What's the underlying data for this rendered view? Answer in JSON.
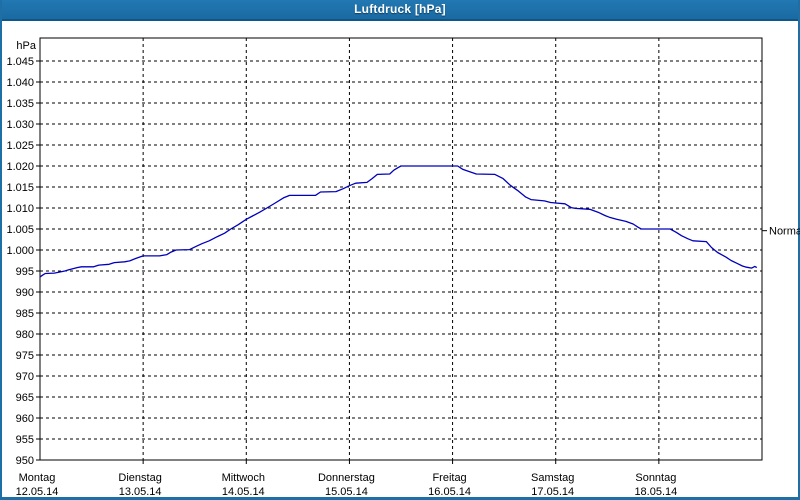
{
  "window": {
    "title": "Luftdruck [hPa]",
    "titlebar_color": "#1c6da7"
  },
  "chart_data": {
    "type": "line",
    "title": "Luftdruck [hPa]",
    "ylabel": "hPa",
    "unit": "hPa",
    "ylim": [
      950,
      1045
    ],
    "grid": true,
    "line_color": "#0000bb",
    "y_ticks": [
      {
        "value": 1045,
        "label": "1.045"
      },
      {
        "value": 1040,
        "label": "1.040"
      },
      {
        "value": 1035,
        "label": "1.035"
      },
      {
        "value": 1030,
        "label": "1.030"
      },
      {
        "value": 1025,
        "label": "1.025"
      },
      {
        "value": 1020,
        "label": "1.020"
      },
      {
        "value": 1015,
        "label": "1.015"
      },
      {
        "value": 1010,
        "label": "1.010"
      },
      {
        "value": 1005,
        "label": "1.005"
      },
      {
        "value": 1000,
        "label": "1.000"
      },
      {
        "value": 995,
        "label": "995"
      },
      {
        "value": 990,
        "label": "990"
      },
      {
        "value": 985,
        "label": "985"
      },
      {
        "value": 980,
        "label": "980"
      },
      {
        "value": 975,
        "label": "975"
      },
      {
        "value": 970,
        "label": "970"
      },
      {
        "value": 965,
        "label": "965"
      },
      {
        "value": 960,
        "label": "960"
      },
      {
        "value": 955,
        "label": "955"
      },
      {
        "value": 950,
        "label": "950"
      }
    ],
    "days": [
      {
        "name": "Montag",
        "date": "12.05.14"
      },
      {
        "name": "Dienstag",
        "date": "13.05.14"
      },
      {
        "name": "Mittwoch",
        "date": "14.05.14"
      },
      {
        "name": "Donnerstag",
        "date": "15.05.14"
      },
      {
        "name": "Freitag",
        "date": "16.05.14"
      },
      {
        "name": "Samstag",
        "date": "17.05.14"
      },
      {
        "name": "Sonntag",
        "date": "18.05.14"
      }
    ],
    "normal_marker": {
      "label": "Normal",
      "value": 1004.6
    },
    "series": [
      {
        "name": "Luftdruck",
        "x_unit": "days_from_12.05.14",
        "points": [
          [
            0.0,
            993.6
          ],
          [
            0.03,
            994.1
          ],
          [
            0.05,
            994.4
          ],
          [
            0.14,
            994.5
          ],
          [
            0.24,
            995.0
          ],
          [
            0.28,
            995.3
          ],
          [
            0.36,
            995.8
          ],
          [
            0.4,
            996.0
          ],
          [
            0.52,
            996.0
          ],
          [
            0.57,
            996.4
          ],
          [
            0.67,
            996.6
          ],
          [
            0.72,
            997.0
          ],
          [
            0.82,
            997.2
          ],
          [
            0.87,
            997.4
          ],
          [
            0.93,
            998.0
          ],
          [
            1.0,
            998.6
          ],
          [
            1.16,
            998.6
          ],
          [
            1.23,
            998.9
          ],
          [
            1.27,
            999.5
          ],
          [
            1.32,
            1000.0
          ],
          [
            1.45,
            1000.1
          ],
          [
            1.51,
            1000.8
          ],
          [
            1.57,
            1001.5
          ],
          [
            1.64,
            1002.2
          ],
          [
            1.72,
            1003.2
          ],
          [
            1.79,
            1004.0
          ],
          [
            1.85,
            1005.0
          ],
          [
            1.92,
            1006.0
          ],
          [
            2.0,
            1007.3
          ],
          [
            2.06,
            1008.1
          ],
          [
            2.13,
            1009.0
          ],
          [
            2.2,
            1010.0
          ],
          [
            2.28,
            1011.2
          ],
          [
            2.36,
            1012.4
          ],
          [
            2.42,
            1013.0
          ],
          [
            2.67,
            1013.0
          ],
          [
            2.72,
            1013.8
          ],
          [
            2.87,
            1013.9
          ],
          [
            2.94,
            1014.6
          ],
          [
            3.0,
            1015.3
          ],
          [
            3.06,
            1015.9
          ],
          [
            3.17,
            1016.1
          ],
          [
            3.22,
            1017.0
          ],
          [
            3.27,
            1018.0
          ],
          [
            3.39,
            1018.1
          ],
          [
            3.43,
            1019.0
          ],
          [
            3.47,
            1019.6
          ],
          [
            3.5,
            1020.0
          ],
          [
            4.05,
            1020.0
          ],
          [
            4.1,
            1019.2
          ],
          [
            4.17,
            1018.6
          ],
          [
            4.23,
            1018.1
          ],
          [
            4.41,
            1018.0
          ],
          [
            4.49,
            1017.0
          ],
          [
            4.56,
            1015.4
          ],
          [
            4.64,
            1014.0
          ],
          [
            4.71,
            1012.6
          ],
          [
            4.76,
            1012.0
          ],
          [
            4.89,
            1011.7
          ],
          [
            4.95,
            1011.3
          ],
          [
            5.0,
            1011.2
          ],
          [
            5.09,
            1011.0
          ],
          [
            5.15,
            1010.1
          ],
          [
            5.19,
            1009.9
          ],
          [
            5.33,
            1009.7
          ],
          [
            5.41,
            1009.0
          ],
          [
            5.48,
            1008.2
          ],
          [
            5.52,
            1007.8
          ],
          [
            5.59,
            1007.3
          ],
          [
            5.68,
            1006.8
          ],
          [
            5.75,
            1006.2
          ],
          [
            5.8,
            1005.4
          ],
          [
            5.83,
            1005.0
          ],
          [
            6.11,
            1005.0
          ],
          [
            6.17,
            1004.2
          ],
          [
            6.22,
            1003.4
          ],
          [
            6.28,
            1002.7
          ],
          [
            6.33,
            1002.2
          ],
          [
            6.46,
            1002.0
          ],
          [
            6.51,
            1000.6
          ],
          [
            6.57,
            999.4
          ],
          [
            6.65,
            998.3
          ],
          [
            6.7,
            997.5
          ],
          [
            6.76,
            996.8
          ],
          [
            6.81,
            996.2
          ],
          [
            6.85,
            995.9
          ],
          [
            6.9,
            995.7
          ],
          [
            6.93,
            996.1
          ],
          [
            6.95,
            995.8
          ]
        ]
      }
    ]
  }
}
